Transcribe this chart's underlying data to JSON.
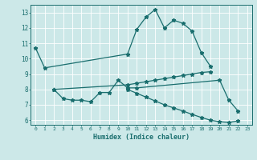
{
  "xlabel": "Humidex (Indice chaleur)",
  "background_color": "#cce8e8",
  "grid_color": "#b0d4d4",
  "line_color": "#1a6e6e",
  "xlim": [
    -0.5,
    23.5
  ],
  "ylim": [
    5.7,
    13.5
  ],
  "x_ticks": [
    0,
    1,
    2,
    3,
    4,
    5,
    6,
    7,
    8,
    9,
    10,
    11,
    12,
    13,
    14,
    15,
    16,
    17,
    18,
    19,
    20,
    21,
    22,
    23
  ],
  "y_ticks": [
    6,
    7,
    8,
    9,
    10,
    11,
    12,
    13
  ],
  "line1_x": [
    0,
    1,
    10,
    11,
    12,
    13,
    14,
    15,
    16,
    17,
    18,
    19
  ],
  "line1_y": [
    10.7,
    9.4,
    10.3,
    11.9,
    12.7,
    13.2,
    12.0,
    12.5,
    12.3,
    11.8,
    10.4,
    9.5
  ],
  "line2_x": [
    2,
    3,
    4,
    5,
    6,
    7,
    8,
    9,
    10,
    11,
    20,
    21,
    22
  ],
  "line2_y": [
    8.0,
    7.4,
    7.3,
    7.3,
    7.2,
    7.8,
    7.8,
    8.6,
    8.1,
    8.1,
    8.6,
    7.3,
    6.6
  ],
  "line3_x": [
    2,
    10,
    11,
    12,
    13,
    14,
    15,
    16,
    17,
    18,
    19
  ],
  "line3_y": [
    8.0,
    8.3,
    8.4,
    8.5,
    8.6,
    8.7,
    8.8,
    8.9,
    9.0,
    9.1,
    9.15
  ],
  "line4_x": [
    10,
    11,
    12,
    13,
    14,
    15,
    16,
    17,
    18,
    19,
    20,
    21,
    22
  ],
  "line4_y": [
    8.0,
    7.75,
    7.5,
    7.25,
    7.0,
    6.8,
    6.6,
    6.38,
    6.18,
    6.0,
    5.9,
    5.85,
    5.95
  ]
}
